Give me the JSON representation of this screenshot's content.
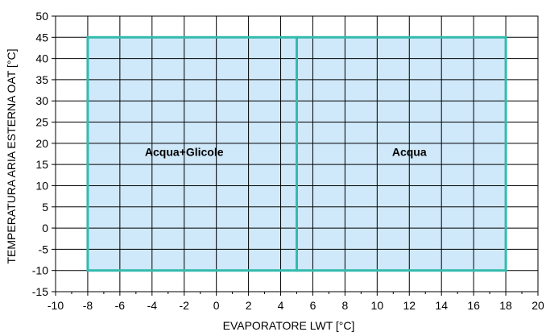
{
  "chart_data": {
    "type": "area",
    "xlabel": "EVAPORATORE LWT [°C]",
    "ylabel": "TEMPERATURA ARIA ESTERNA OAT [°C]",
    "xlim": [
      -10,
      20
    ],
    "ylim": [
      -15,
      50
    ],
    "x_ticks": [
      -10,
      -8,
      -6,
      -4,
      -2,
      0,
      2,
      4,
      6,
      8,
      10,
      12,
      14,
      16,
      18,
      20
    ],
    "y_ticks": [
      -15,
      -10,
      -5,
      0,
      5,
      10,
      15,
      20,
      25,
      30,
      35,
      40,
      45,
      50
    ],
    "x_tick_labels": [
      "-10",
      "-8",
      "-6",
      "-4",
      "-2",
      "0",
      "2",
      "4",
      "6",
      "8",
      "10",
      "12",
      "14",
      "16",
      "18",
      "20"
    ],
    "y_tick_labels": [
      "-15",
      "-10",
      "-5",
      "0",
      "5",
      "10",
      "15",
      "20",
      "25",
      "30",
      "35",
      "40",
      "45",
      "50"
    ],
    "grid": true,
    "regions": [
      {
        "name": "Acqua+Glicole",
        "x": [
          -8,
          5
        ],
        "y": [
          -10,
          45
        ],
        "label_at": [
          -2,
          18
        ]
      },
      {
        "name": "Acqua",
        "x": [
          5,
          18
        ],
        "y": [
          -10,
          45
        ],
        "label_at": [
          12,
          18
        ]
      }
    ],
    "colors": {
      "region_fill": "#cfe8fa",
      "region_border": "#33bbad",
      "grid": "#000000",
      "axis": "#000000"
    }
  }
}
